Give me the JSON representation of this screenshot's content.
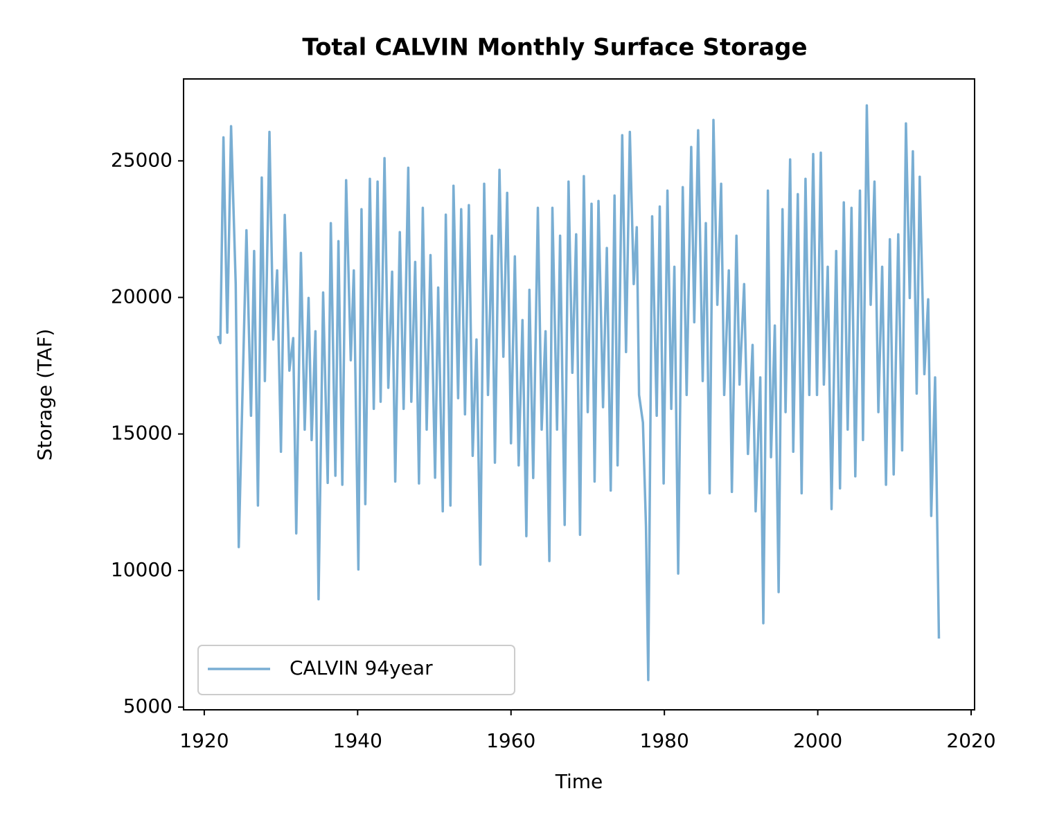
{
  "chart_data": {
    "type": "line",
    "title": "Total CALVIN Monthly Surface Storage",
    "xlabel": "Time",
    "ylabel": "Storage (TAF)",
    "x": [
      1921.8,
      1922.1,
      1922.5,
      1923.0,
      1923.5,
      1924.1,
      1924.5,
      1925.5,
      1926.1,
      1926.5,
      1927.0,
      1927.5,
      1927.9,
      1928.5,
      1929.0,
      1929.5,
      1930.0,
      1930.5,
      1931.1,
      1931.6,
      1932.0,
      1932.6,
      1933.1,
      1933.6,
      1934.0,
      1934.5,
      1934.9,
      1935.5,
      1936.1,
      1936.5,
      1937.1,
      1937.5,
      1938.0,
      1938.5,
      1939.1,
      1939.5,
      1940.1,
      1940.5,
      1941.0,
      1941.6,
      1942.1,
      1942.6,
      1943.0,
      1943.5,
      1944.0,
      1944.5,
      1944.9,
      1945.5,
      1946.0,
      1946.6,
      1947.0,
      1947.5,
      1948.0,
      1948.5,
      1949.0,
      1949.5,
      1950.1,
      1950.5,
      1951.1,
      1951.5,
      1952.1,
      1952.5,
      1953.1,
      1953.5,
      1954.0,
      1954.5,
      1955.0,
      1955.5,
      1956.0,
      1956.5,
      1957.0,
      1957.5,
      1957.9,
      1958.5,
      1959.0,
      1959.5,
      1960.0,
      1960.5,
      1961.0,
      1961.5,
      1962.0,
      1962.4,
      1962.9,
      1963.5,
      1964.0,
      1964.5,
      1965.0,
      1965.4,
      1966.0,
      1966.4,
      1967.0,
      1967.5,
      1968.0,
      1968.5,
      1969.0,
      1969.5,
      1970.0,
      1970.5,
      1970.9,
      1971.4,
      1972.0,
      1972.5,
      1973.0,
      1973.5,
      1973.9,
      1974.5,
      1975.0,
      1975.5,
      1976.0,
      1976.4,
      1976.7,
      1977.2,
      1977.6,
      1977.9,
      1978.4,
      1979.0,
      1979.4,
      1979.9,
      1980.4,
      1980.9,
      1981.3,
      1981.8,
      1982.4,
      1982.9,
      1983.5,
      1983.9,
      1984.4,
      1985.0,
      1985.4,
      1985.9,
      1986.4,
      1986.9,
      1987.4,
      1987.8,
      1988.4,
      1988.8,
      1989.4,
      1989.8,
      1990.4,
      1990.9,
      1991.5,
      1991.9,
      1992.5,
      1992.9,
      1993.5,
      1993.9,
      1994.4,
      1994.9,
      1995.4,
      1995.8,
      1996.4,
      1996.8,
      1997.4,
      1997.9,
      1998.4,
      1998.9,
      1999.4,
      1999.9,
      2000.4,
      2000.8,
      2001.3,
      2001.8,
      2002.4,
      2002.9,
      2003.4,
      2003.9,
      2004.4,
      2004.9,
      2005.5,
      2005.9,
      2006.4,
      2006.9,
      2007.4,
      2007.9,
      2008.4,
      2008.9,
      2009.4,
      2009.9,
      2010.5,
      2011.0,
      2011.5,
      2012.0,
      2012.4,
      2012.9,
      2013.3,
      2013.9,
      2014.4,
      2014.8,
      2015.3,
      2015.8
    ],
    "series": [
      {
        "name": "CALVIN 94year",
        "color": "#79aed3",
        "values": [
          18590,
          18330,
          25860,
          18710,
          26270,
          20490,
          10860,
          22460,
          15670,
          21700,
          12380,
          24390,
          16940,
          26060,
          18460,
          20990,
          14350,
          23020,
          17320,
          18510,
          11360,
          21630,
          15160,
          19980,
          14780,
          18760,
          8950,
          20180,
          13210,
          22720,
          13470,
          22060,
          13140,
          24290,
          17700,
          20990,
          10040,
          23230,
          12430,
          24340,
          15920,
          24240,
          16180,
          25100,
          16690,
          20940,
          13260,
          22390,
          15920,
          24750,
          16180,
          21300,
          13190,
          23280,
          15160,
          21550,
          13400,
          20360,
          12170,
          23030,
          12380,
          24090,
          16310,
          23230,
          15720,
          23380,
          14200,
          18460,
          10220,
          24160,
          16430,
          22260,
          13950,
          24670,
          17830,
          23830,
          14660,
          21500,
          13850,
          19170,
          11260,
          20280,
          13390,
          23280,
          15160,
          18760,
          10350,
          23280,
          15160,
          22260,
          11670,
          24240,
          17240,
          22310,
          11310,
          24440,
          15800,
          23430,
          13260,
          23530,
          15980,
          21810,
          12930,
          23730,
          13850,
          25940,
          18000,
          26060,
          20490,
          22570,
          16430,
          15420,
          11610,
          5990,
          22970,
          15670,
          23330,
          13190,
          23910,
          15920,
          21120,
          9890,
          24040,
          16430,
          25510,
          19090,
          26120,
          16940,
          22720,
          12830,
          26500,
          19730,
          24160,
          16430,
          20990,
          12880,
          22260,
          16810,
          20490,
          14270,
          18260,
          12170,
          17070,
          8070,
          23910,
          14150,
          18970,
          9210,
          23230,
          15800,
          25050,
          14350,
          23780,
          12830,
          24340,
          16430,
          25250,
          16430,
          25300,
          16810,
          21120,
          12250,
          21700,
          13010,
          23480,
          15160,
          23280,
          13450,
          23910,
          14780,
          27030,
          19730,
          24240,
          15800,
          21120,
          13140,
          22130,
          13520,
          22310,
          14400,
          26370,
          19980,
          25350,
          16480,
          24420,
          17190,
          19930,
          12000,
          17070,
          7510
        ]
      }
    ],
    "xlim": [
      1917.3,
      2020.45
    ],
    "ylim": [
      4900,
      28000
    ],
    "xticks": [
      1920,
      1940,
      1960,
      1980,
      2000,
      2020
    ],
    "yticks": [
      5000,
      10000,
      15000,
      20000,
      25000
    ],
    "legend": "lower left"
  }
}
